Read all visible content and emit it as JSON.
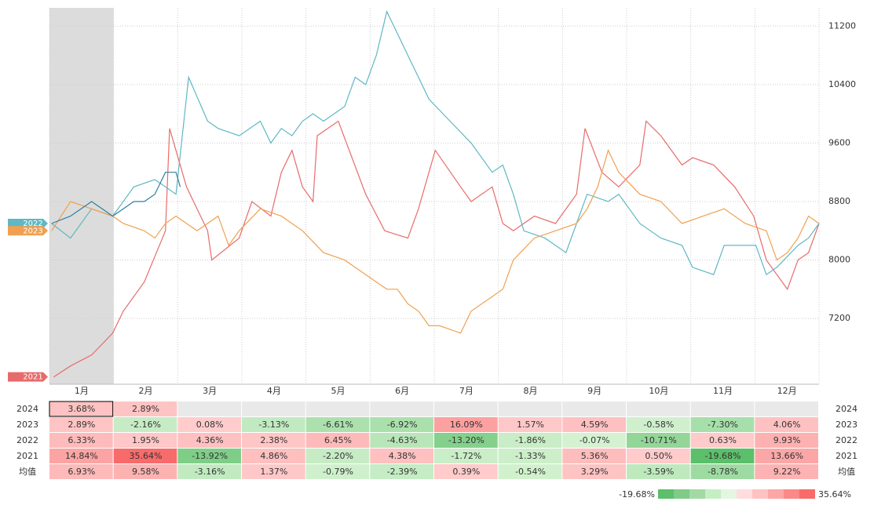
{
  "chart_data": {
    "type": "line",
    "categories": [
      "1月",
      "2月",
      "3月",
      "4月",
      "5月",
      "6月",
      "7月",
      "8月",
      "9月",
      "10月",
      "11月",
      "12月"
    ],
    "xlim": [
      0,
      365
    ],
    "ylim": [
      6300,
      11450
    ],
    "yticks": [
      7200,
      8000,
      8800,
      9600,
      10400,
      11200
    ],
    "grid": true,
    "highlight_month": 0,
    "series": [
      {
        "name": "2021",
        "color": "#e86b6b",
        "tag": true,
        "x": [
          2,
          10,
          20,
          30,
          35,
          45,
          55,
          57,
          65,
          75,
          77,
          90,
          96,
          105,
          110,
          115,
          120,
          125,
          127,
          137,
          150,
          159,
          170,
          175,
          183,
          195,
          200,
          210,
          215,
          220,
          230,
          240,
          250,
          254,
          262,
          270,
          280,
          283,
          290,
          300,
          305,
          315,
          325,
          334,
          340,
          350,
          355,
          360,
          365
        ],
        "values": [
          6400,
          6550,
          6700,
          7000,
          7300,
          7700,
          8400,
          9800,
          9000,
          8400,
          8000,
          8300,
          8800,
          8600,
          9200,
          9500,
          9000,
          8800,
          9700,
          9900,
          8900,
          8400,
          8300,
          8700,
          9500,
          9000,
          8800,
          9000,
          8500,
          8400,
          8600,
          8500,
          8900,
          9800,
          9200,
          9000,
          9300,
          9900,
          9700,
          9300,
          9400,
          9300,
          9000,
          8600,
          8000,
          7600,
          8000,
          8100,
          8500
        ]
      },
      {
        "name": "2022",
        "color": "#5fb8c4",
        "tag": true,
        "x": [
          1,
          10,
          20,
          30,
          40,
          50,
          55,
          60,
          66,
          75,
          80,
          90,
          95,
          100,
          105,
          110,
          115,
          120,
          125,
          130,
          140,
          145,
          150,
          155,
          160,
          170,
          175,
          180,
          190,
          200,
          210,
          215,
          220,
          225,
          235,
          245,
          250,
          255,
          265,
          270,
          280,
          290,
          300,
          305,
          315,
          320,
          325,
          335,
          340,
          345,
          355,
          360,
          365
        ],
        "values": [
          8500,
          8300,
          8700,
          8600,
          9000,
          9100,
          9000,
          8900,
          10500,
          9900,
          9800,
          9700,
          9800,
          9900,
          9600,
          9800,
          9700,
          9900,
          10000,
          9900,
          10100,
          10500,
          10400,
          10800,
          11400,
          10800,
          10500,
          10200,
          9900,
          9600,
          9200,
          9300,
          8900,
          8400,
          8300,
          8100,
          8500,
          8900,
          8800,
          8900,
          8500,
          8300,
          8200,
          7900,
          7800,
          8200,
          8200,
          8200,
          7800,
          7900,
          8200,
          8300,
          8500
        ]
      },
      {
        "name": "2023",
        "color": "#f0a050",
        "tag": true,
        "x": [
          1,
          10,
          20,
          30,
          35,
          45,
          50,
          55,
          60,
          70,
          80,
          85,
          90,
          100,
          110,
          120,
          130,
          140,
          150,
          160,
          165,
          170,
          175,
          180,
          185,
          195,
          200,
          210,
          215,
          220,
          230,
          240,
          250,
          255,
          260,
          265,
          270,
          280,
          290,
          300,
          310,
          320,
          330,
          340,
          345,
          350,
          355,
          360,
          365
        ],
        "values": [
          8400,
          8800,
          8700,
          8600,
          8500,
          8400,
          8300,
          8500,
          8600,
          8400,
          8600,
          8200,
          8400,
          8700,
          8600,
          8400,
          8100,
          8000,
          7800,
          7600,
          7600,
          7400,
          7300,
          7100,
          7100,
          7000,
          7300,
          7500,
          7600,
          8000,
          8300,
          8400,
          8500,
          8700,
          9000,
          9500,
          9200,
          8900,
          8800,
          8500,
          8600,
          8700,
          8500,
          8400,
          8000,
          8100,
          8300,
          8600,
          8500
        ]
      },
      {
        "name": "2024",
        "color": "#2f7fa0",
        "tag": false,
        "x": [
          1,
          10,
          20,
          30,
          40,
          45,
          50,
          55,
          60,
          62
        ],
        "values": [
          8500,
          8600,
          8800,
          8600,
          8800,
          8800,
          8900,
          9200,
          9200,
          9000
        ]
      }
    ]
  },
  "table": {
    "rows": [
      {
        "label": "2024",
        "values": [
          3.68,
          2.89,
          null,
          null,
          null,
          null,
          null,
          null,
          null,
          null,
          null,
          null
        ],
        "value_labels": [
          "3.68%",
          "2.89%",
          null,
          null,
          null,
          null,
          null,
          null,
          null,
          null,
          null,
          null
        ]
      },
      {
        "label": "2023",
        "values": [
          2.89,
          -2.16,
          0.08,
          -3.13,
          -6.61,
          -6.92,
          16.09,
          1.57,
          4.59,
          -0.58,
          -7.3,
          4.06
        ],
        "value_labels": [
          "2.89%",
          "-2.16%",
          "0.08%",
          "-3.13%",
          "-6.61%",
          "-6.92%",
          "16.09%",
          "1.57%",
          "4.59%",
          "-0.58%",
          "-7.30%",
          "4.06%"
        ]
      },
      {
        "label": "2022",
        "values": [
          6.33,
          1.95,
          4.36,
          2.38,
          6.45,
          -4.63,
          -13.2,
          -1.86,
          -0.07,
          -10.71,
          0.63,
          9.93
        ],
        "value_labels": [
          "6.33%",
          "1.95%",
          "4.36%",
          "2.38%",
          "6.45%",
          "-4.63%",
          "-13.20%",
          "-1.86%",
          "-0.07%",
          "-10.71%",
          "0.63%",
          "9.93%"
        ]
      },
      {
        "label": "2021",
        "values": [
          14.84,
          35.64,
          -13.92,
          4.86,
          -2.2,
          4.38,
          -1.72,
          -1.33,
          5.36,
          0.5,
          -19.68,
          13.66
        ],
        "value_labels": [
          "14.84%",
          "35.64%",
          "-13.92%",
          "4.86%",
          "-2.20%",
          "4.38%",
          "-1.72%",
          "-1.33%",
          "5.36%",
          "0.50%",
          "-19.68%",
          "13.66%"
        ]
      },
      {
        "label": "均值",
        "values": [
          6.93,
          9.58,
          -3.16,
          1.37,
          -0.79,
          -2.39,
          0.39,
          -0.54,
          3.29,
          -3.59,
          -8.78,
          9.22
        ],
        "value_labels": [
          "6.93%",
          "9.58%",
          "-3.16%",
          "1.37%",
          "-0.79%",
          "-2.39%",
          "0.39%",
          "-0.54%",
          "3.29%",
          "-3.59%",
          "-8.78%",
          "9.22%"
        ]
      }
    ],
    "colorbar": {
      "min": -19.68,
      "max": 35.64,
      "min_label": "-19.68%",
      "max_label": "35.64%"
    }
  }
}
